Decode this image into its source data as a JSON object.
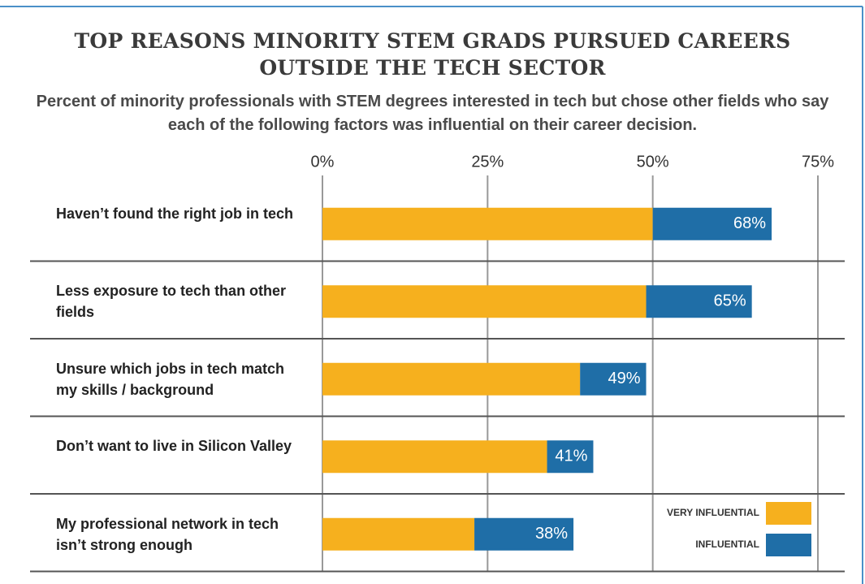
{
  "chart_data": {
    "type": "stacked-barh",
    "title": "TOP REASONS MINORITY STEM GRADS PURSUED CAREERS OUTSIDE THE TECH SECTOR",
    "subtitle": "Percent of minority professionals with STEM degrees interested in tech but chose other fields who say each of the following factors was influential on their career decision.",
    "categories": [
      "Haven’t found the right job in tech",
      "Less exposure to tech than other fields",
      "Unsure which jobs in tech match my skills / background",
      "Don’t want to live in Silicon Valley",
      "My professional network in tech isn’t strong enough"
    ],
    "series": [
      {
        "name": "VERY INFLUENTIAL",
        "color": "#f6b01e",
        "values": [
          50,
          49,
          39,
          34,
          23
        ]
      },
      {
        "name": "INFLUENTIAL",
        "color": "#1f6ea7",
        "values": [
          18,
          16,
          10,
          7,
          15
        ]
      }
    ],
    "totals": [
      68,
      65,
      49,
      41,
      38
    ],
    "total_labels": [
      "68%",
      "65%",
      "49%",
      "41%",
      "38%"
    ],
    "xlim": [
      0,
      75
    ],
    "xticks": [
      {
        "value": 0,
        "label": "0%"
      },
      {
        "value": 25,
        "label": "25%"
      },
      {
        "value": 50,
        "label": "50%"
      },
      {
        "value": 75,
        "label": "75%"
      }
    ],
    "grid": true,
    "legend": "bottom-right"
  }
}
